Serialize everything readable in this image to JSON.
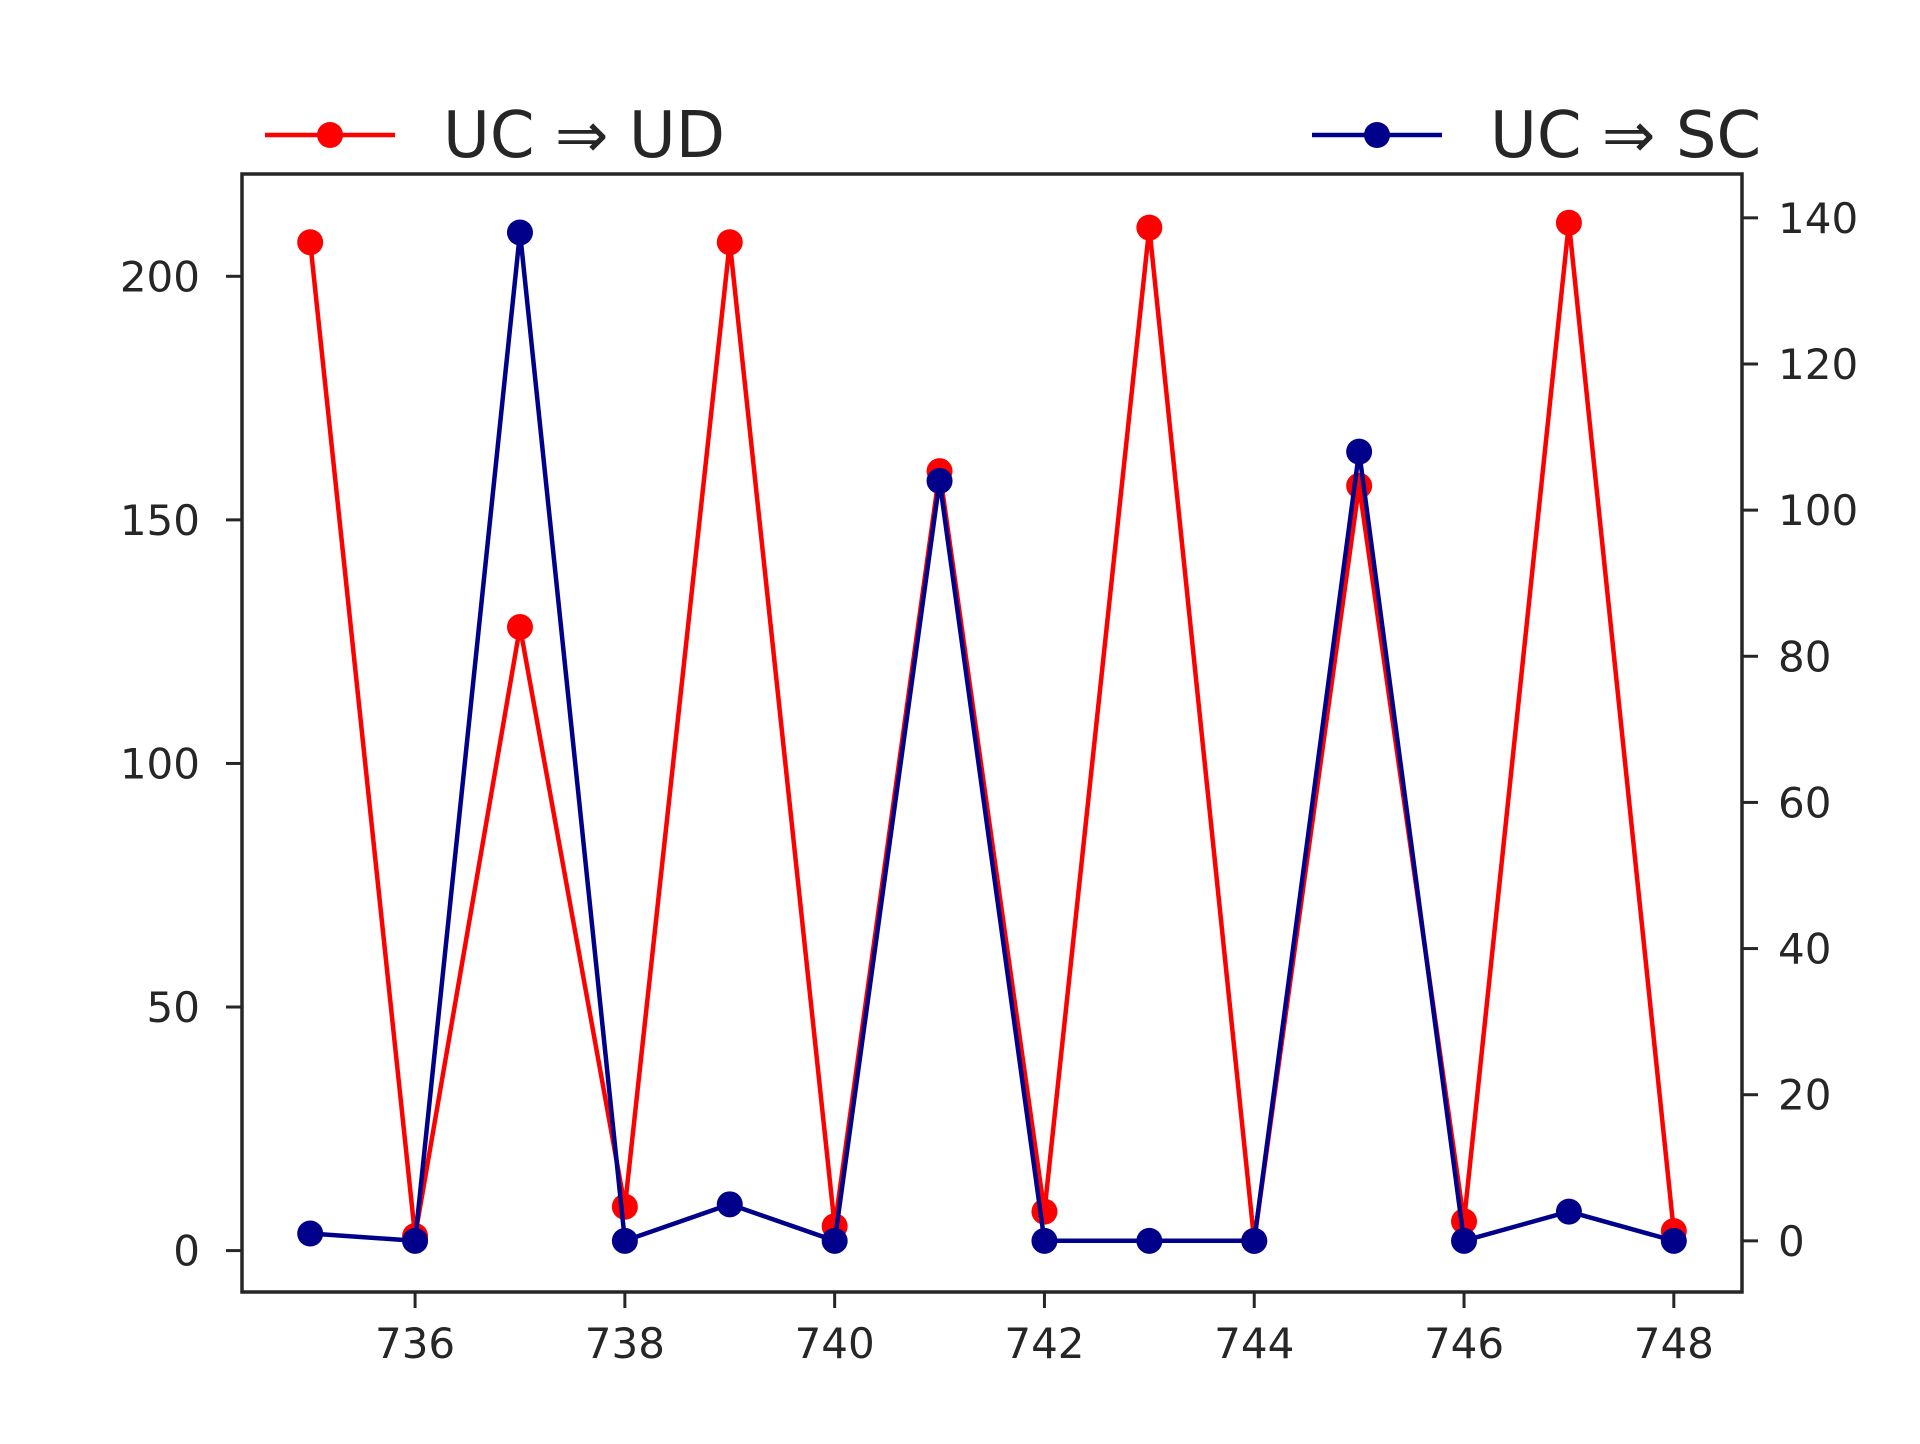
{
  "chart_data": {
    "type": "line",
    "x": [
      735,
      736,
      737,
      738,
      739,
      740,
      741,
      742,
      743,
      744,
      745,
      746,
      747,
      748
    ],
    "xticks": [
      736,
      738,
      740,
      742,
      744,
      746,
      748
    ],
    "xlim": [
      734.35,
      748.65
    ],
    "left_axis": {
      "ylim": [
        -8.5,
        221
      ],
      "ticks": [
        0,
        50,
        100,
        150,
        200
      ]
    },
    "right_axis": {
      "ylim": [
        -7,
        146
      ],
      "ticks": [
        0,
        20,
        40,
        60,
        80,
        100,
        120,
        140
      ]
    },
    "grid": false,
    "series": [
      {
        "name": "UC ⇒ UD",
        "axis": "left",
        "color": "#ff0000",
        "values": [
          207,
          3,
          128,
          9,
          207,
          5,
          160,
          8,
          210,
          2,
          157,
          6,
          211,
          4
        ],
        "legend_position": "top-left"
      },
      {
        "name": "UC ⇒ SC",
        "axis": "right",
        "color": "#00008b",
        "values": [
          1,
          0,
          138,
          0,
          5,
          0,
          104,
          0,
          0,
          0,
          108,
          0,
          4,
          0
        ],
        "legend_position": "top-right"
      }
    ]
  }
}
